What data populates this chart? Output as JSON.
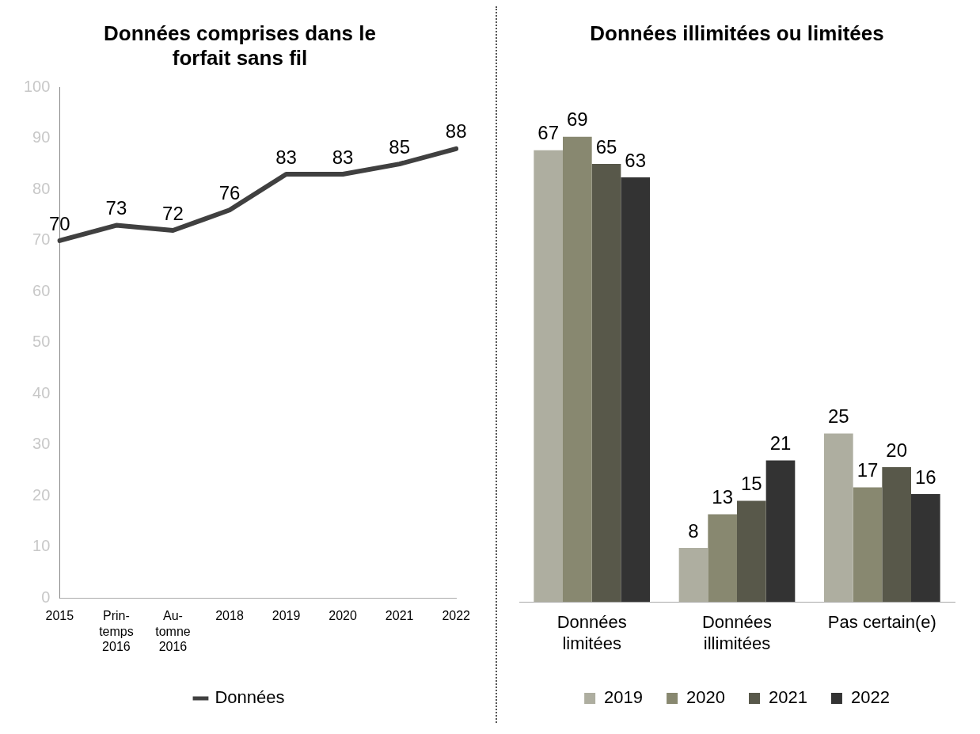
{
  "chart_data": [
    {
      "type": "line",
      "title": "Données comprises dans le forfait sans fil",
      "categories": [
        "2015",
        "Prin-temps 2016",
        "Au-tomne 2016",
        "2018",
        "2019",
        "2020",
        "2021",
        "2022"
      ],
      "series": [
        {
          "name": "Données",
          "color": "#404040",
          "values": [
            70,
            73,
            72,
            76,
            83,
            83,
            85,
            88
          ]
        }
      ],
      "ylim": [
        0,
        100
      ],
      "yticks": [
        0,
        10,
        20,
        30,
        40,
        50,
        60,
        70,
        80,
        90,
        100
      ],
      "grid": false,
      "legend": "bottom",
      "marker": "none",
      "data_labels": true
    },
    {
      "type": "bar",
      "title": "Données illimitées ou limitées",
      "categories": [
        "Données limitées",
        "Données illimitées",
        "Pas certain(e)"
      ],
      "series": [
        {
          "name": "2019",
          "color": "#aeaea0",
          "values": [
            67,
            8,
            25
          ]
        },
        {
          "name": "2020",
          "color": "#888870",
          "values": [
            69,
            13,
            17
          ]
        },
        {
          "name": "2021",
          "color": "#58584a",
          "values": [
            65,
            15,
            20
          ]
        },
        {
          "name": "2022",
          "color": "#333333",
          "values": [
            63,
            21,
            16
          ]
        }
      ],
      "tick_labels": "x",
      "legend": "bottom",
      "data_labels": true
    }
  ]
}
